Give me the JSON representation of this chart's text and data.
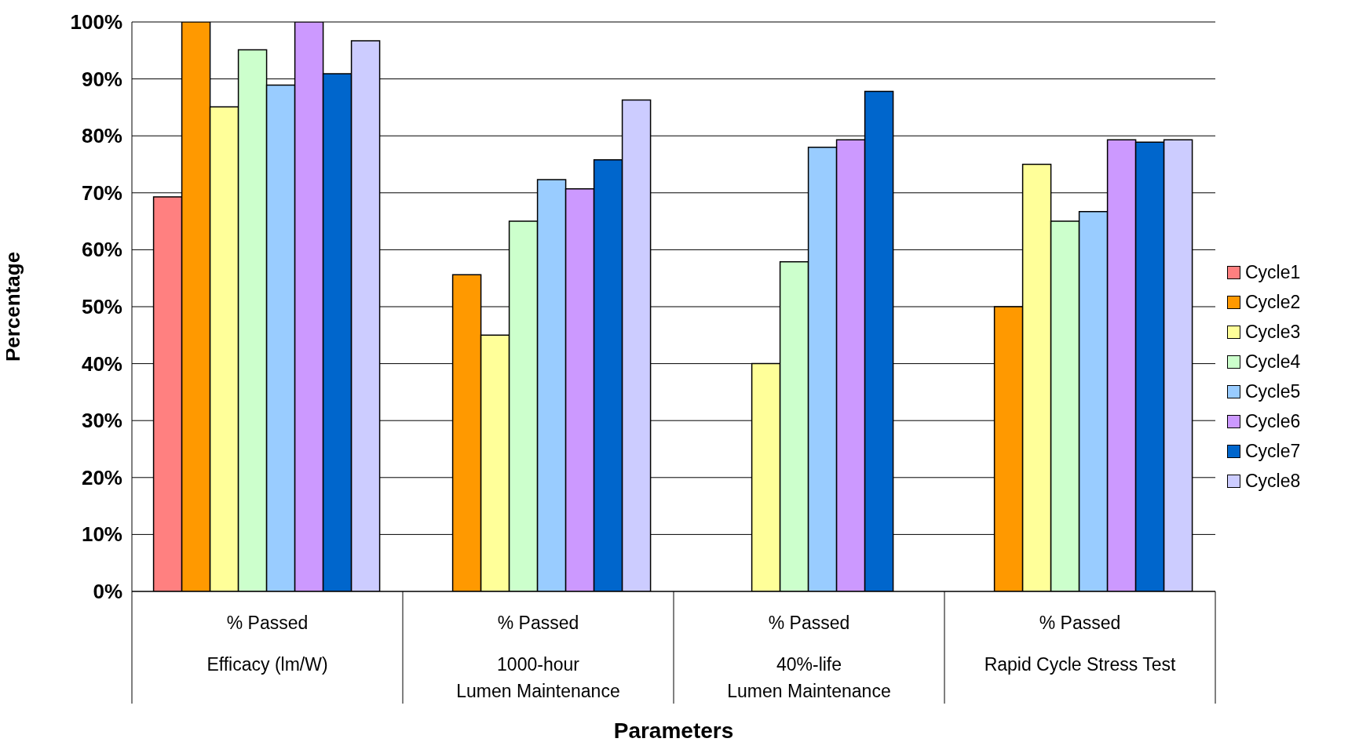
{
  "chart_data": {
    "type": "bar",
    "xlabel": "Parameters",
    "ylabel": "Percentage",
    "categories": [
      "% Passed\nEfficacy (lm/W)",
      "% Passed\n1000-hour\nLumen Maintenance",
      "% Passed\n40%-life\nLumen Maintenance",
      "% Passed\nRapid Cycle Stress Test"
    ],
    "series": [
      {
        "name": "Cycle1",
        "color": "#ff8080",
        "values": [
          69.3,
          null,
          null,
          null
        ]
      },
      {
        "name": "Cycle2",
        "color": "#ff9900",
        "values": [
          100,
          55.6,
          null,
          50
        ]
      },
      {
        "name": "Cycle3",
        "color": "#ffff99",
        "values": [
          85.1,
          45,
          40,
          75
        ]
      },
      {
        "name": "Cycle4",
        "color": "#ccffcc",
        "values": [
          95.1,
          65,
          57.9,
          65
        ]
      },
      {
        "name": "Cycle5",
        "color": "#99ccff",
        "values": [
          88.9,
          72.3,
          78,
          66.7
        ]
      },
      {
        "name": "Cycle6",
        "color": "#cc99ff",
        "values": [
          100,
          70.7,
          79.3,
          79.3
        ]
      },
      {
        "name": "Cycle7",
        "color": "#0066cc",
        "values": [
          90.9,
          75.8,
          87.8,
          78.9
        ]
      },
      {
        "name": "Cycle8",
        "color": "#ccccff",
        "values": [
          96.7,
          86.3,
          null,
          79.3
        ]
      }
    ],
    "ylim": [
      0,
      100
    ],
    "yticks": [
      {
        "value": 0,
        "label": "0%"
      },
      {
        "value": 10,
        "label": "10%"
      },
      {
        "value": 20,
        "label": "20%"
      },
      {
        "value": 30,
        "label": "30%"
      },
      {
        "value": 40,
        "label": "40%"
      },
      {
        "value": 50,
        "label": "50%"
      },
      {
        "value": 60,
        "label": "60%"
      },
      {
        "value": 70,
        "label": "70%"
      },
      {
        "value": 80,
        "label": "80%"
      },
      {
        "value": 90,
        "label": "90%"
      },
      {
        "value": 100,
        "label": "100%"
      }
    ],
    "grid": "y",
    "legend": "right"
  }
}
